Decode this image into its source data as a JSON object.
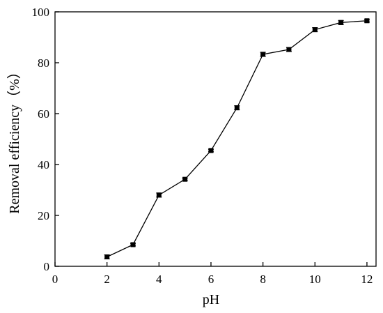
{
  "chart_data": {
    "type": "line",
    "x_label": "pH",
    "y_label": "Removal efficiency（%）",
    "x": [
      2,
      3,
      4,
      5,
      6,
      7,
      8,
      9,
      10,
      11,
      12
    ],
    "series": [
      {
        "name": "Removal efficiency",
        "color": "#000000",
        "values": [
          3.7,
          8.5,
          28,
          34.2,
          45.5,
          62.3,
          83.3,
          85.2,
          93,
          95.8,
          96.5
        ],
        "errors": [
          0.8,
          0.5,
          0.8,
          0.5,
          0.5,
          0.8,
          0.8,
          0.8,
          0.8,
          0.8,
          0.5
        ]
      }
    ],
    "xlim": [
      0,
      12.35
    ],
    "xticks": [
      0,
      2,
      4,
      6,
      8,
      10,
      12
    ],
    "ylim": [
      0,
      100
    ],
    "yticks": [
      0,
      20,
      40,
      60,
      80,
      100
    ]
  }
}
